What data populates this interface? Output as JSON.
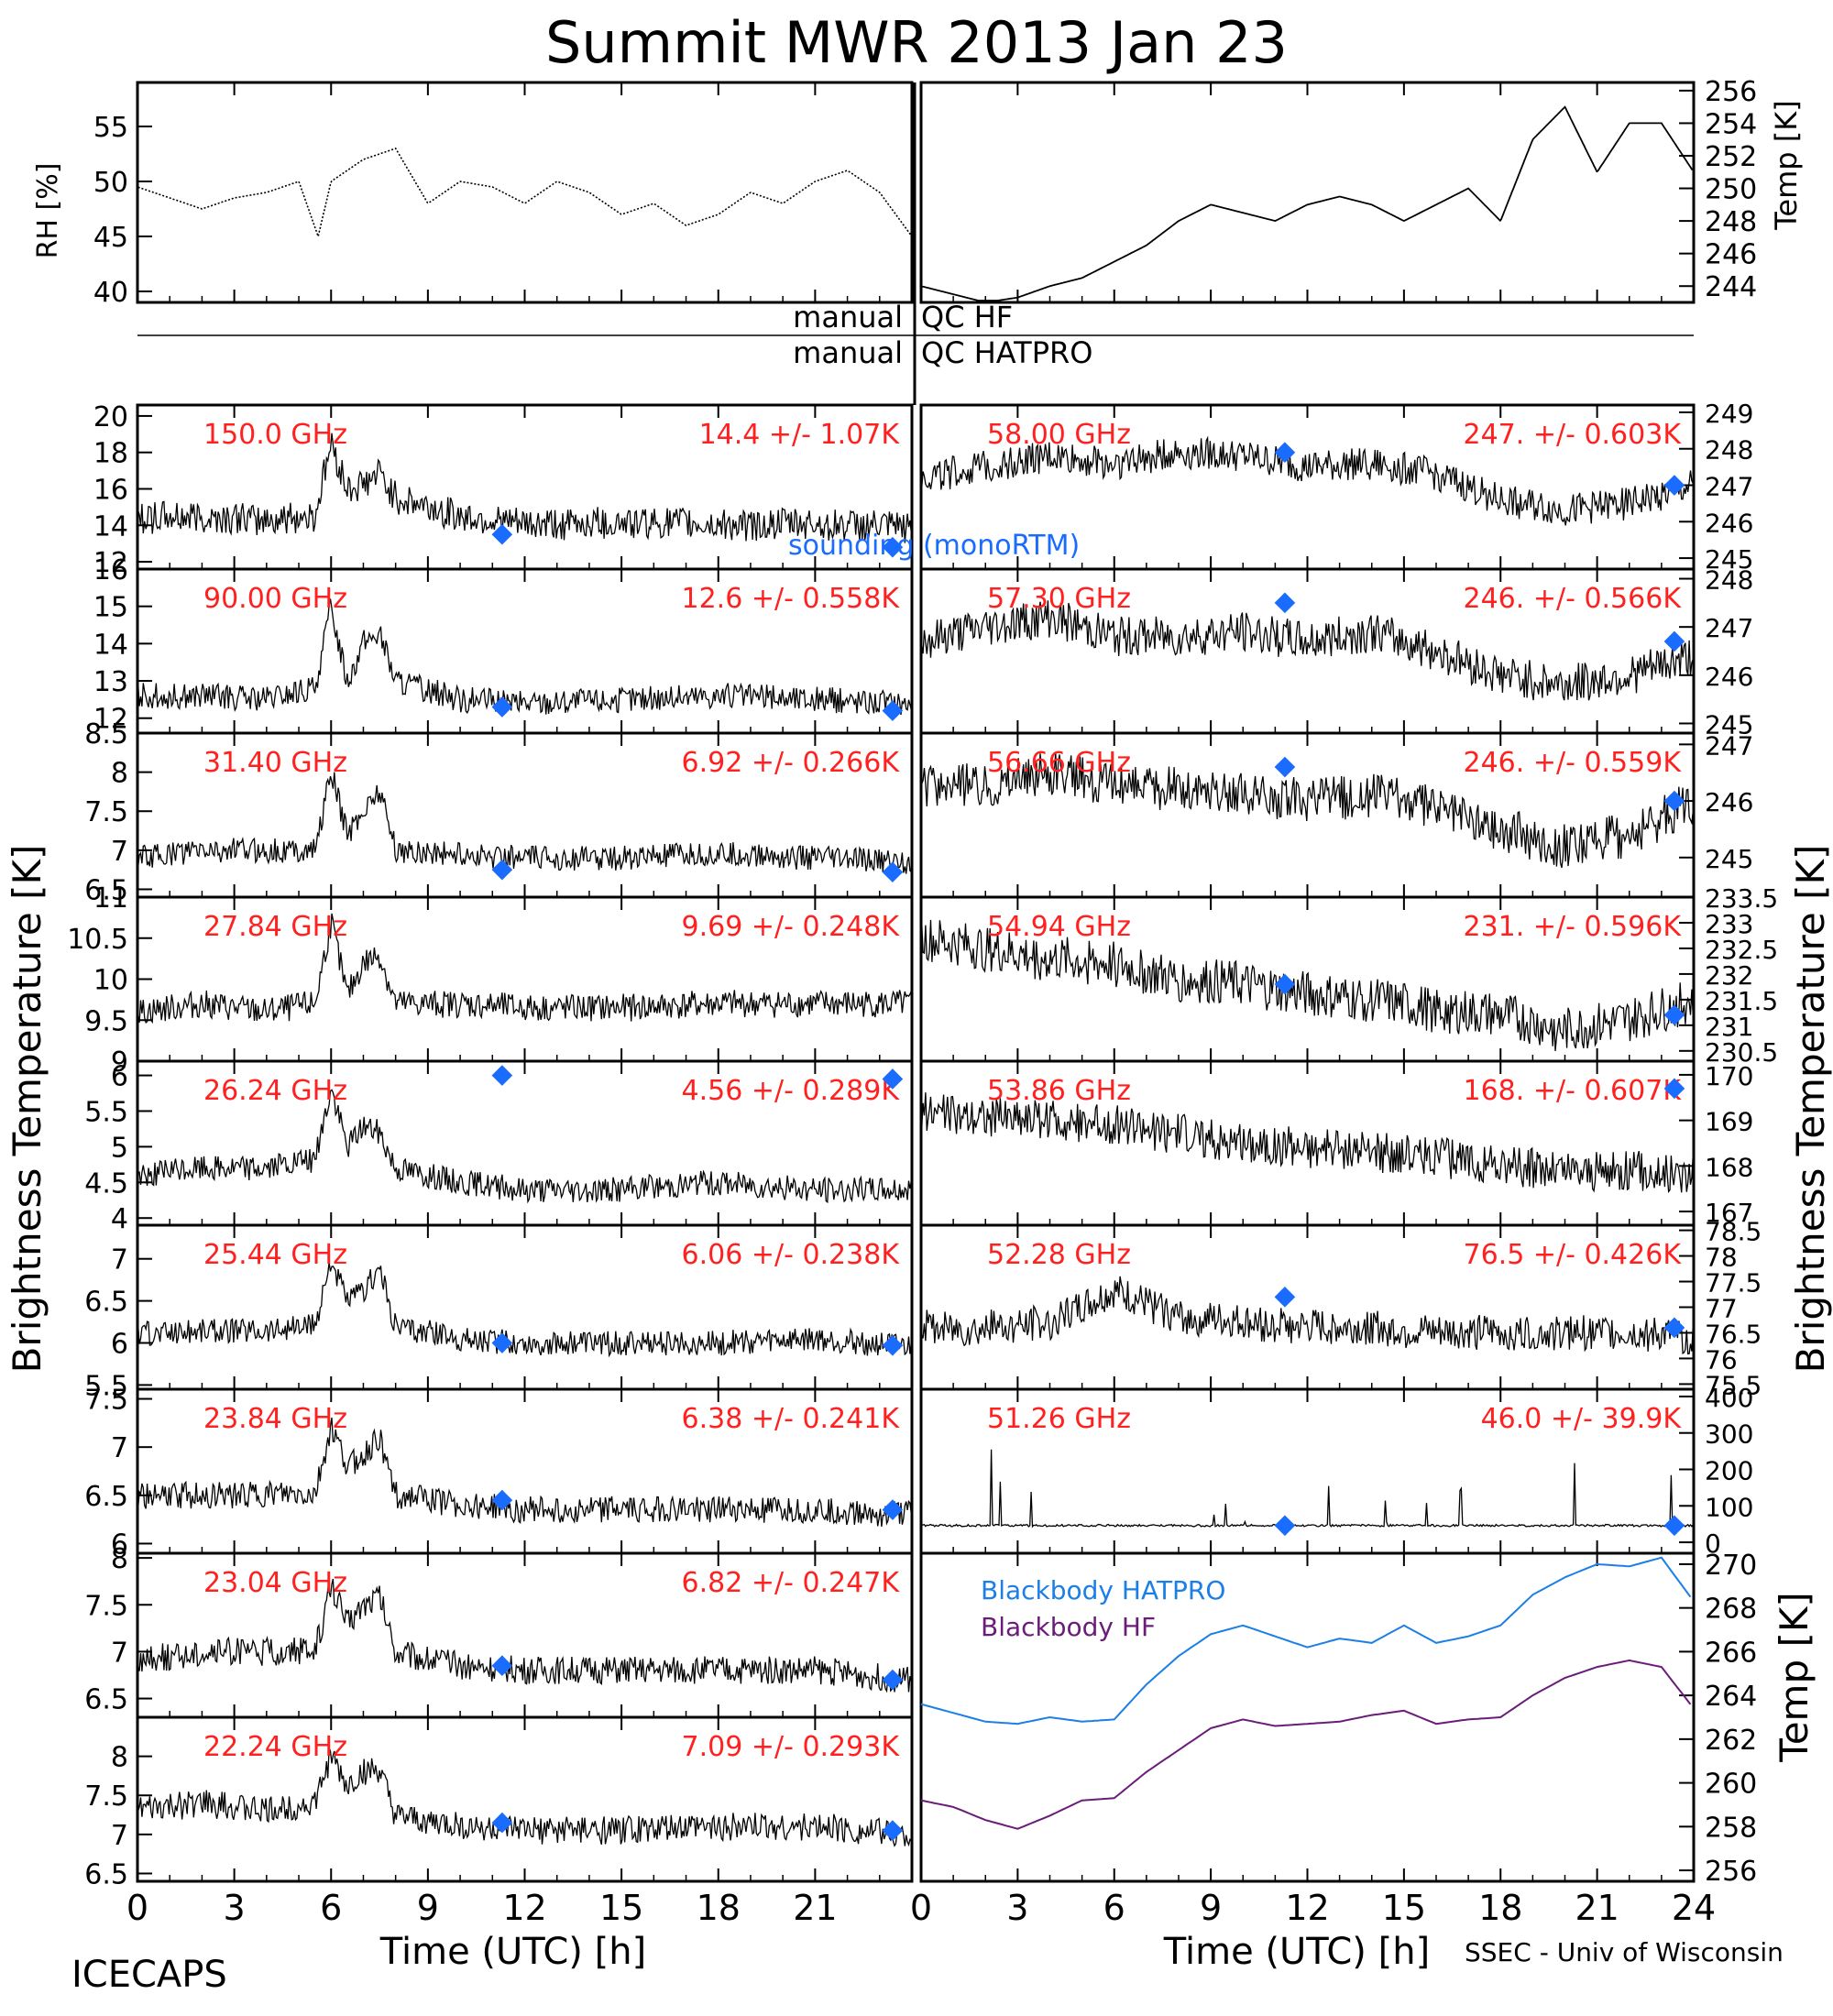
{
  "title": "Summit MWR 2013 Jan 23",
  "colors": {
    "axis": "#000000",
    "trace": "#000000",
    "label": "#ff2020",
    "sounding": "#1a6cff",
    "bb_hatpro": "#1c7fe6",
    "bb_hf": "#6a1d78",
    "qc": "#000000"
  },
  "qc": {
    "hf": "QC HF",
    "hatpro": "QC HATPRO",
    "manual": "manual"
  },
  "footer": {
    "left": "ICECAPS",
    "right": "SSEC - Univ of Wisconsin",
    "xlabel": "Time (UTC) [h]"
  },
  "xaxis": {
    "range": [
      0,
      24
    ],
    "ticks_left": [
      "0",
      "3",
      "6",
      "9",
      "12",
      "15",
      "18",
      "21"
    ],
    "ticks_right": [
      "0",
      "3",
      "6",
      "9",
      "12",
      "15",
      "18",
      "21",
      "24"
    ],
    "tick_values": [
      0,
      3,
      6,
      9,
      12,
      15,
      18,
      21,
      24
    ]
  },
  "ylabels": {
    "left": "Brightness Temperature [K]",
    "right": "Brightness Temperature [K]",
    "rh": "RH [%]",
    "temp": "Temp [K]",
    "bb": "Temp [K]"
  },
  "chart_data": [
    {
      "type": "line",
      "id": "rh",
      "ylabel": "RH [%]",
      "ylim": [
        39,
        59
      ],
      "yticks": [
        40,
        45,
        50,
        55
      ],
      "x": [
        0,
        1,
        2,
        3,
        4,
        5,
        5.6,
        6,
        7,
        8,
        9,
        10,
        11,
        12,
        13,
        14,
        15,
        16,
        17,
        18,
        19,
        20,
        21,
        22,
        23,
        24
      ],
      "y": [
        49.5,
        48.5,
        47.5,
        48.5,
        49,
        50,
        45,
        50,
        52,
        53,
        48,
        50,
        49.5,
        48,
        50,
        49,
        47,
        48,
        46,
        47,
        49,
        48,
        50,
        51,
        49,
        45
      ]
    },
    {
      "type": "line",
      "id": "temp",
      "ylabel": "Temp [K]",
      "ylim": [
        243,
        256.5
      ],
      "yticks": [
        244,
        246,
        248,
        250,
        252,
        254,
        256
      ],
      "x": [
        0,
        1,
        2,
        3,
        4,
        5,
        6,
        7,
        8,
        9,
        10,
        11,
        12,
        13,
        14,
        15,
        16,
        17,
        18,
        19,
        20,
        21,
        22,
        23,
        24
      ],
      "y": [
        244,
        243.5,
        243,
        243.3,
        244,
        244.5,
        245.5,
        246.5,
        248,
        249,
        248.5,
        248,
        249,
        249.5,
        249,
        248,
        249,
        250,
        248,
        253,
        255,
        251,
        254,
        254,
        251
      ]
    },
    {
      "type": "line",
      "id": "c150",
      "label": "150.0 GHz",
      "stat": "14.4 +/- 1.07K",
      "ylim": [
        11.6,
        20.6
      ],
      "yticks": [
        12,
        14,
        16,
        18,
        20
      ],
      "amp": 0.9,
      "x": [
        0,
        2,
        4,
        5.5,
        6,
        6.5,
        7,
        7.5,
        8,
        10,
        12,
        15,
        18,
        21,
        24
      ],
      "y": [
        14.4,
        14.5,
        14.3,
        14.5,
        18.5,
        16,
        16.2,
        16.8,
        15.5,
        14.5,
        14,
        14.2,
        14,
        14.1,
        13.8
      ],
      "sounding": [
        [
          11.3,
          13.5
        ],
        [
          23.4,
          12.8
        ]
      ],
      "sounding_label": "sounding (monoRTM)"
    },
    {
      "type": "line",
      "id": "c90",
      "label": "90.00 GHz",
      "stat": "12.6 +/- 0.558K",
      "ylim": [
        11.6,
        16
      ],
      "yticks": [
        12,
        13,
        14,
        15,
        16
      ],
      "amp": 0.35,
      "x": [
        0,
        2,
        4,
        5.5,
        6,
        6.5,
        7,
        7.5,
        8,
        10,
        12,
        15,
        18,
        21,
        24
      ],
      "y": [
        12.6,
        12.6,
        12.5,
        12.8,
        15,
        13,
        14,
        14.3,
        13,
        12.5,
        12.4,
        12.5,
        12.6,
        12.5,
        12.4
      ],
      "sounding": [
        [
          11.3,
          12.3
        ],
        [
          23.4,
          12.2
        ]
      ]
    },
    {
      "type": "line",
      "id": "c3140",
      "label": "31.40 GHz",
      "stat": "6.92 +/- 0.266K",
      "ylim": [
        6.4,
        8.5
      ],
      "yticks": [
        6.5,
        7.0,
        7.5,
        8.0,
        8.5
      ],
      "amp": 0.16,
      "x": [
        0,
        2,
        4,
        5.5,
        6,
        6.5,
        7,
        7.5,
        8,
        10,
        12,
        15,
        18,
        21,
        24
      ],
      "y": [
        6.9,
        7,
        7,
        7,
        8,
        7.2,
        7.5,
        7.8,
        7,
        6.95,
        6.9,
        6.9,
        6.95,
        6.9,
        6.85
      ],
      "sounding": [
        [
          11.3,
          6.75
        ],
        [
          23.4,
          6.72
        ]
      ]
    },
    {
      "type": "line",
      "id": "c2784",
      "label": "27.84 GHz",
      "stat": "9.69 +/- 0.248K",
      "ylim": [
        9,
        11
      ],
      "yticks": [
        9.0,
        9.5,
        10.0,
        10.5,
        11.0
      ],
      "amp": 0.17,
      "x": [
        0,
        2,
        4,
        5.5,
        6,
        6.5,
        7,
        7.5,
        8,
        10,
        12,
        15,
        18,
        21,
        24
      ],
      "y": [
        9.6,
        9.7,
        9.6,
        9.7,
        10.7,
        9.8,
        10.2,
        10.3,
        9.7,
        9.7,
        9.65,
        9.65,
        9.7,
        9.7,
        9.7
      ],
      "sounding": []
    },
    {
      "type": "line",
      "id": "c2624",
      "label": "26.24 GHz",
      "stat": "4.56 +/- 0.289K",
      "ylim": [
        3.9,
        6.2
      ],
      "yticks": [
        4.0,
        4.5,
        5.0,
        5.5,
        6.0
      ],
      "amp": 0.18,
      "x": [
        0,
        2,
        4,
        5.5,
        6,
        6.5,
        7,
        7.5,
        8,
        10,
        12,
        15,
        18,
        21,
        24
      ],
      "y": [
        4.6,
        4.7,
        4.7,
        4.8,
        5.8,
        5,
        5.3,
        5.2,
        4.7,
        4.5,
        4.4,
        4.4,
        4.5,
        4.4,
        4.4
      ],
      "sounding": [
        [
          11.3,
          6.0
        ],
        [
          23.4,
          5.95
        ]
      ]
    },
    {
      "type": "line",
      "id": "c2544",
      "label": "25.44 GHz",
      "stat": "6.06 +/- 0.238K",
      "ylim": [
        5.45,
        7.4
      ],
      "yticks": [
        5.5,
        6.0,
        6.5,
        7.0
      ],
      "amp": 0.15,
      "x": [
        0,
        2,
        4,
        5.5,
        6,
        6.5,
        7,
        7.5,
        8,
        10,
        12,
        15,
        18,
        21,
        24
      ],
      "y": [
        6.1,
        6.15,
        6.15,
        6.2,
        7,
        6.5,
        6.6,
        6.9,
        6.2,
        6.05,
        6,
        6,
        6,
        6.05,
        5.95
      ],
      "sounding": [
        [
          11.3,
          6.0
        ],
        [
          23.4,
          5.97
        ]
      ]
    },
    {
      "type": "line",
      "id": "c2384",
      "label": "23.84 GHz",
      "stat": "6.38 +/- 0.241K",
      "ylim": [
        5.9,
        7.6
      ],
      "yticks": [
        6.0,
        6.5,
        7.0,
        7.5
      ],
      "amp": 0.14,
      "x": [
        0,
        2,
        4,
        5.5,
        6,
        6.5,
        7,
        7.5,
        8,
        10,
        12,
        15,
        18,
        21,
        24
      ],
      "y": [
        6.5,
        6.5,
        6.5,
        6.5,
        7.2,
        6.8,
        6.9,
        7.1,
        6.5,
        6.4,
        6.35,
        6.35,
        6.35,
        6.35,
        6.3
      ],
      "sounding": [
        [
          11.3,
          6.45
        ],
        [
          23.4,
          6.35
        ]
      ]
    },
    {
      "type": "line",
      "id": "c2304",
      "label": "23.04 GHz",
      "stat": "6.82 +/- 0.247K",
      "ylim": [
        6.3,
        8.05
      ],
      "yticks": [
        6.5,
        7.0,
        7.5,
        8.0
      ],
      "amp": 0.15,
      "x": [
        0,
        2,
        4,
        5.5,
        6,
        6.5,
        7,
        7.5,
        8,
        10,
        12,
        15,
        18,
        21,
        24
      ],
      "y": [
        6.9,
        7,
        7,
        7,
        7.7,
        7.3,
        7.5,
        7.6,
        7,
        6.85,
        6.8,
        6.8,
        6.8,
        6.8,
        6.7
      ],
      "sounding": [
        [
          11.3,
          6.85
        ],
        [
          23.4,
          6.7
        ]
      ]
    },
    {
      "type": "line",
      "id": "c2224",
      "label": "22.24 GHz",
      "stat": "7.09 +/- 0.293K",
      "ylim": [
        6.4,
        8.5
      ],
      "yticks": [
        6.5,
        7.0,
        7.5,
        8.0
      ],
      "amp": 0.18,
      "x": [
        0,
        2,
        4,
        5.5,
        6,
        6.5,
        7,
        7.5,
        8,
        10,
        12,
        15,
        18,
        21,
        24
      ],
      "y": [
        7.3,
        7.4,
        7.3,
        7.4,
        8,
        7.6,
        7.8,
        7.8,
        7.2,
        7.1,
        7.05,
        7.05,
        7.1,
        7.1,
        7.0
      ],
      "sounding": [
        [
          11.3,
          7.15
        ],
        [
          23.4,
          7.05
        ]
      ]
    },
    {
      "type": "line",
      "id": "c5800",
      "label": "58.00 GHz",
      "stat": "247. +/- 0.603K",
      "ylim": [
        244.7,
        249.2
      ],
      "yticks": [
        245,
        246,
        247,
        248,
        249
      ],
      "amp": 0.45,
      "x": [
        0,
        2,
        4,
        6,
        8,
        10,
        12,
        14,
        16,
        18,
        20,
        22,
        24
      ],
      "y": [
        247.2,
        247.5,
        247.8,
        247.6,
        247.9,
        247.8,
        247.5,
        247.6,
        247.3,
        246.6,
        246.3,
        246.5,
        247
      ],
      "sounding": [
        [
          11.3,
          247.9
        ],
        [
          23.4,
          247
        ]
      ]
    },
    {
      "type": "line",
      "id": "c5730",
      "label": "57.30 GHz",
      "stat": "246. +/- 0.566K",
      "ylim": [
        244.8,
        248.2
      ],
      "yticks": [
        245,
        246,
        247,
        248
      ],
      "amp": 0.42,
      "x": [
        0,
        2,
        4,
        6,
        8,
        10,
        12,
        14,
        16,
        18,
        20,
        22,
        24
      ],
      "y": [
        246.7,
        247,
        247.2,
        246.8,
        246.8,
        246.9,
        246.7,
        246.9,
        246.5,
        246,
        245.8,
        246,
        246.4
      ],
      "sounding": [
        [
          11.3,
          247.5
        ],
        [
          23.4,
          246.7
        ]
      ]
    },
    {
      "type": "line",
      "id": "c5666",
      "label": "56.66 GHz",
      "stat": "246. +/- 0.559K",
      "ylim": [
        244.3,
        247.2
      ],
      "yticks": [
        245,
        246,
        247
      ],
      "amp": 0.4,
      "x": [
        0,
        2,
        4,
        6,
        8,
        10,
        12,
        14,
        16,
        18,
        20,
        22,
        24
      ],
      "y": [
        246.2,
        246.3,
        246.5,
        246.3,
        246.2,
        246.1,
        246,
        246.1,
        245.9,
        245.5,
        245.2,
        245.4,
        246
      ],
      "sounding": [
        [
          11.3,
          246.6
        ],
        [
          23.4,
          246
        ]
      ]
    },
    {
      "type": "line",
      "id": "c5494",
      "label": "54.94 GHz",
      "stat": "231. +/- 0.596K",
      "ylim": [
        230.3,
        233.5
      ],
      "yticks": [
        230.5,
        231,
        231.5,
        232,
        232.5,
        233,
        233.5
      ],
      "amp": 0.45,
      "x": [
        0,
        2,
        4,
        6,
        8,
        10,
        12,
        14,
        16,
        18,
        20,
        22,
        24
      ],
      "y": [
        232.7,
        232.5,
        232.3,
        232.2,
        231.9,
        231.8,
        231.6,
        231.5,
        231.3,
        231.2,
        230.9,
        231.1,
        231.5
      ],
      "sounding": [
        [
          11.3,
          231.8
        ],
        [
          23.4,
          231.2
        ]
      ]
    },
    {
      "type": "line",
      "id": "c5386",
      "label": "53.86 GHz",
      "stat": "168. +/- 0.607K",
      "ylim": [
        166.7,
        170.3
      ],
      "yticks": [
        167,
        168,
        169,
        170
      ],
      "amp": 0.45,
      "x": [
        0,
        2,
        4,
        6,
        8,
        10,
        12,
        14,
        16,
        18,
        20,
        22,
        24
      ],
      "y": [
        169.2,
        169.1,
        169,
        168.9,
        168.7,
        168.5,
        168.4,
        168.3,
        168.2,
        168,
        167.9,
        167.9,
        167.8
      ],
      "sounding": [
        [
          23.4,
          169.7
        ]
      ]
    },
    {
      "type": "line",
      "id": "c5228",
      "label": "52.28 GHz",
      "stat": "76.5 +/- 0.426K",
      "ylim": [
        75.4,
        78.6
      ],
      "yticks": [
        75.5,
        76,
        76.5,
        77,
        77.5,
        78,
        78.5
      ],
      "amp": 0.35,
      "x": [
        0,
        2,
        4,
        6,
        8,
        10,
        12,
        14,
        16,
        18,
        20,
        22,
        24
      ],
      "y": [
        76.6,
        76.6,
        76.7,
        77.3,
        76.8,
        76.7,
        76.6,
        76.6,
        76.5,
        76.5,
        76.5,
        76.5,
        76.4
      ],
      "sounding": [
        [
          11.3,
          77.2
        ],
        [
          23.4,
          76.6
        ]
      ]
    },
    {
      "type": "line",
      "id": "c5126",
      "label": "51.26 GHz",
      "stat": "46.0 +/- 39.9K",
      "ylim": [
        -30,
        420
      ],
      "yticks": [
        0,
        100,
        200,
        300,
        400
      ],
      "amp": 3,
      "x": [
        0,
        24
      ],
      "y": [
        46,
        46
      ],
      "spikes": true,
      "sounding": [
        [
          11.3,
          46
        ],
        [
          23.4,
          46
        ]
      ]
    },
    {
      "type": "line",
      "id": "bb",
      "ylabel": "Temp [K]",
      "ylim": [
        255.5,
        270.5
      ],
      "yticks": [
        256,
        258,
        260,
        262,
        264,
        266,
        268,
        270
      ],
      "series": [
        {
          "name": "Blackbody HATPRO",
          "color": "#1c7fe6",
          "x": [
            0,
            1,
            2,
            3,
            4,
            5,
            6,
            7,
            8,
            9,
            10,
            11,
            12,
            13,
            14,
            15,
            16,
            17,
            18,
            19,
            20,
            21,
            22,
            23,
            24
          ],
          "y": [
            263.6,
            263.2,
            262.8,
            262.7,
            263,
            262.8,
            262.9,
            264.5,
            265.8,
            266.8,
            267.2,
            266.7,
            266.2,
            266.6,
            266.4,
            267.2,
            266.4,
            266.7,
            267.2,
            268.6,
            269.4,
            270,
            269.9,
            270.3,
            268.3
          ]
        },
        {
          "name": "Blackbody HF",
          "color": "#6a1d78",
          "x": [
            0,
            1,
            2,
            3,
            4,
            5,
            6,
            7,
            8,
            9,
            10,
            11,
            12,
            13,
            14,
            15,
            16,
            17,
            18,
            19,
            20,
            21,
            22,
            23,
            24
          ],
          "y": [
            259.2,
            258.9,
            258.3,
            257.9,
            258.5,
            259.2,
            259.3,
            260.5,
            261.5,
            262.5,
            262.9,
            262.6,
            262.7,
            262.8,
            263.1,
            263.3,
            262.7,
            262.9,
            263,
            264,
            264.8,
            265.3,
            265.6,
            265.3,
            263.4
          ]
        }
      ]
    }
  ]
}
